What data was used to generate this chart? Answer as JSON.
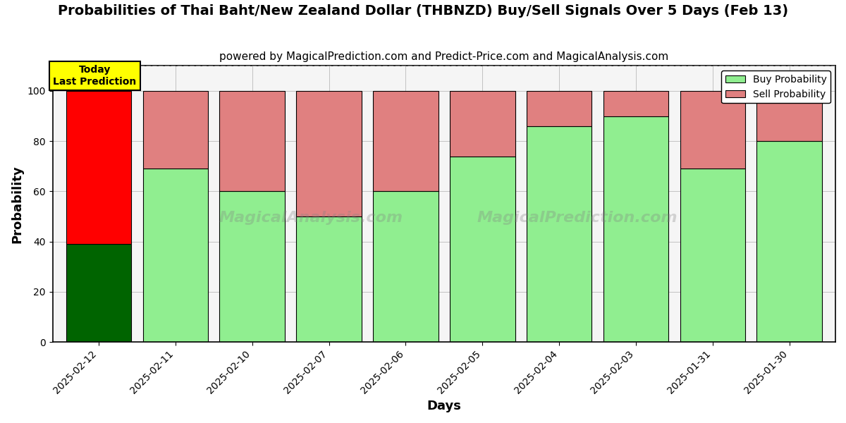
{
  "title": "Probabilities of Thai Baht/New Zealand Dollar (THBNZD) Buy/Sell Signals Over 5 Days (Feb 13)",
  "subtitle": "powered by MagicalPrediction.com and Predict-Price.com and MagicalAnalysis.com",
  "xlabel": "Days",
  "ylabel": "Probability",
  "categories": [
    "2025-02-12",
    "2025-02-11",
    "2025-02-10",
    "2025-02-07",
    "2025-02-06",
    "2025-02-05",
    "2025-02-04",
    "2025-02-03",
    "2025-01-31",
    "2025-01-30"
  ],
  "buy_values": [
    39,
    69,
    60,
    50,
    60,
    74,
    86,
    90,
    69,
    80
  ],
  "sell_values": [
    61,
    31,
    40,
    50,
    40,
    26,
    14,
    10,
    31,
    20
  ],
  "today_buy_color": "#006400",
  "today_sell_color": "#ff0000",
  "buy_color": "#90ee90",
  "sell_color": "#e08080",
  "today_label_bg": "#ffff00",
  "today_label_text": "Today\nLast Prediction",
  "legend_buy_label": "Buy Probability",
  "legend_sell_label": "Sell Probability",
  "watermark1": "MagicalAnalysis.com",
  "watermark2": "MagicalPrediction.com",
  "ylim": [
    0,
    110
  ],
  "yticks": [
    0,
    20,
    40,
    60,
    80,
    100
  ],
  "dashed_line_y": 110,
  "bar_width": 0.85,
  "title_fontsize": 14,
  "subtitle_fontsize": 11,
  "axis_label_fontsize": 13,
  "bg_color": "#f5f5f5"
}
